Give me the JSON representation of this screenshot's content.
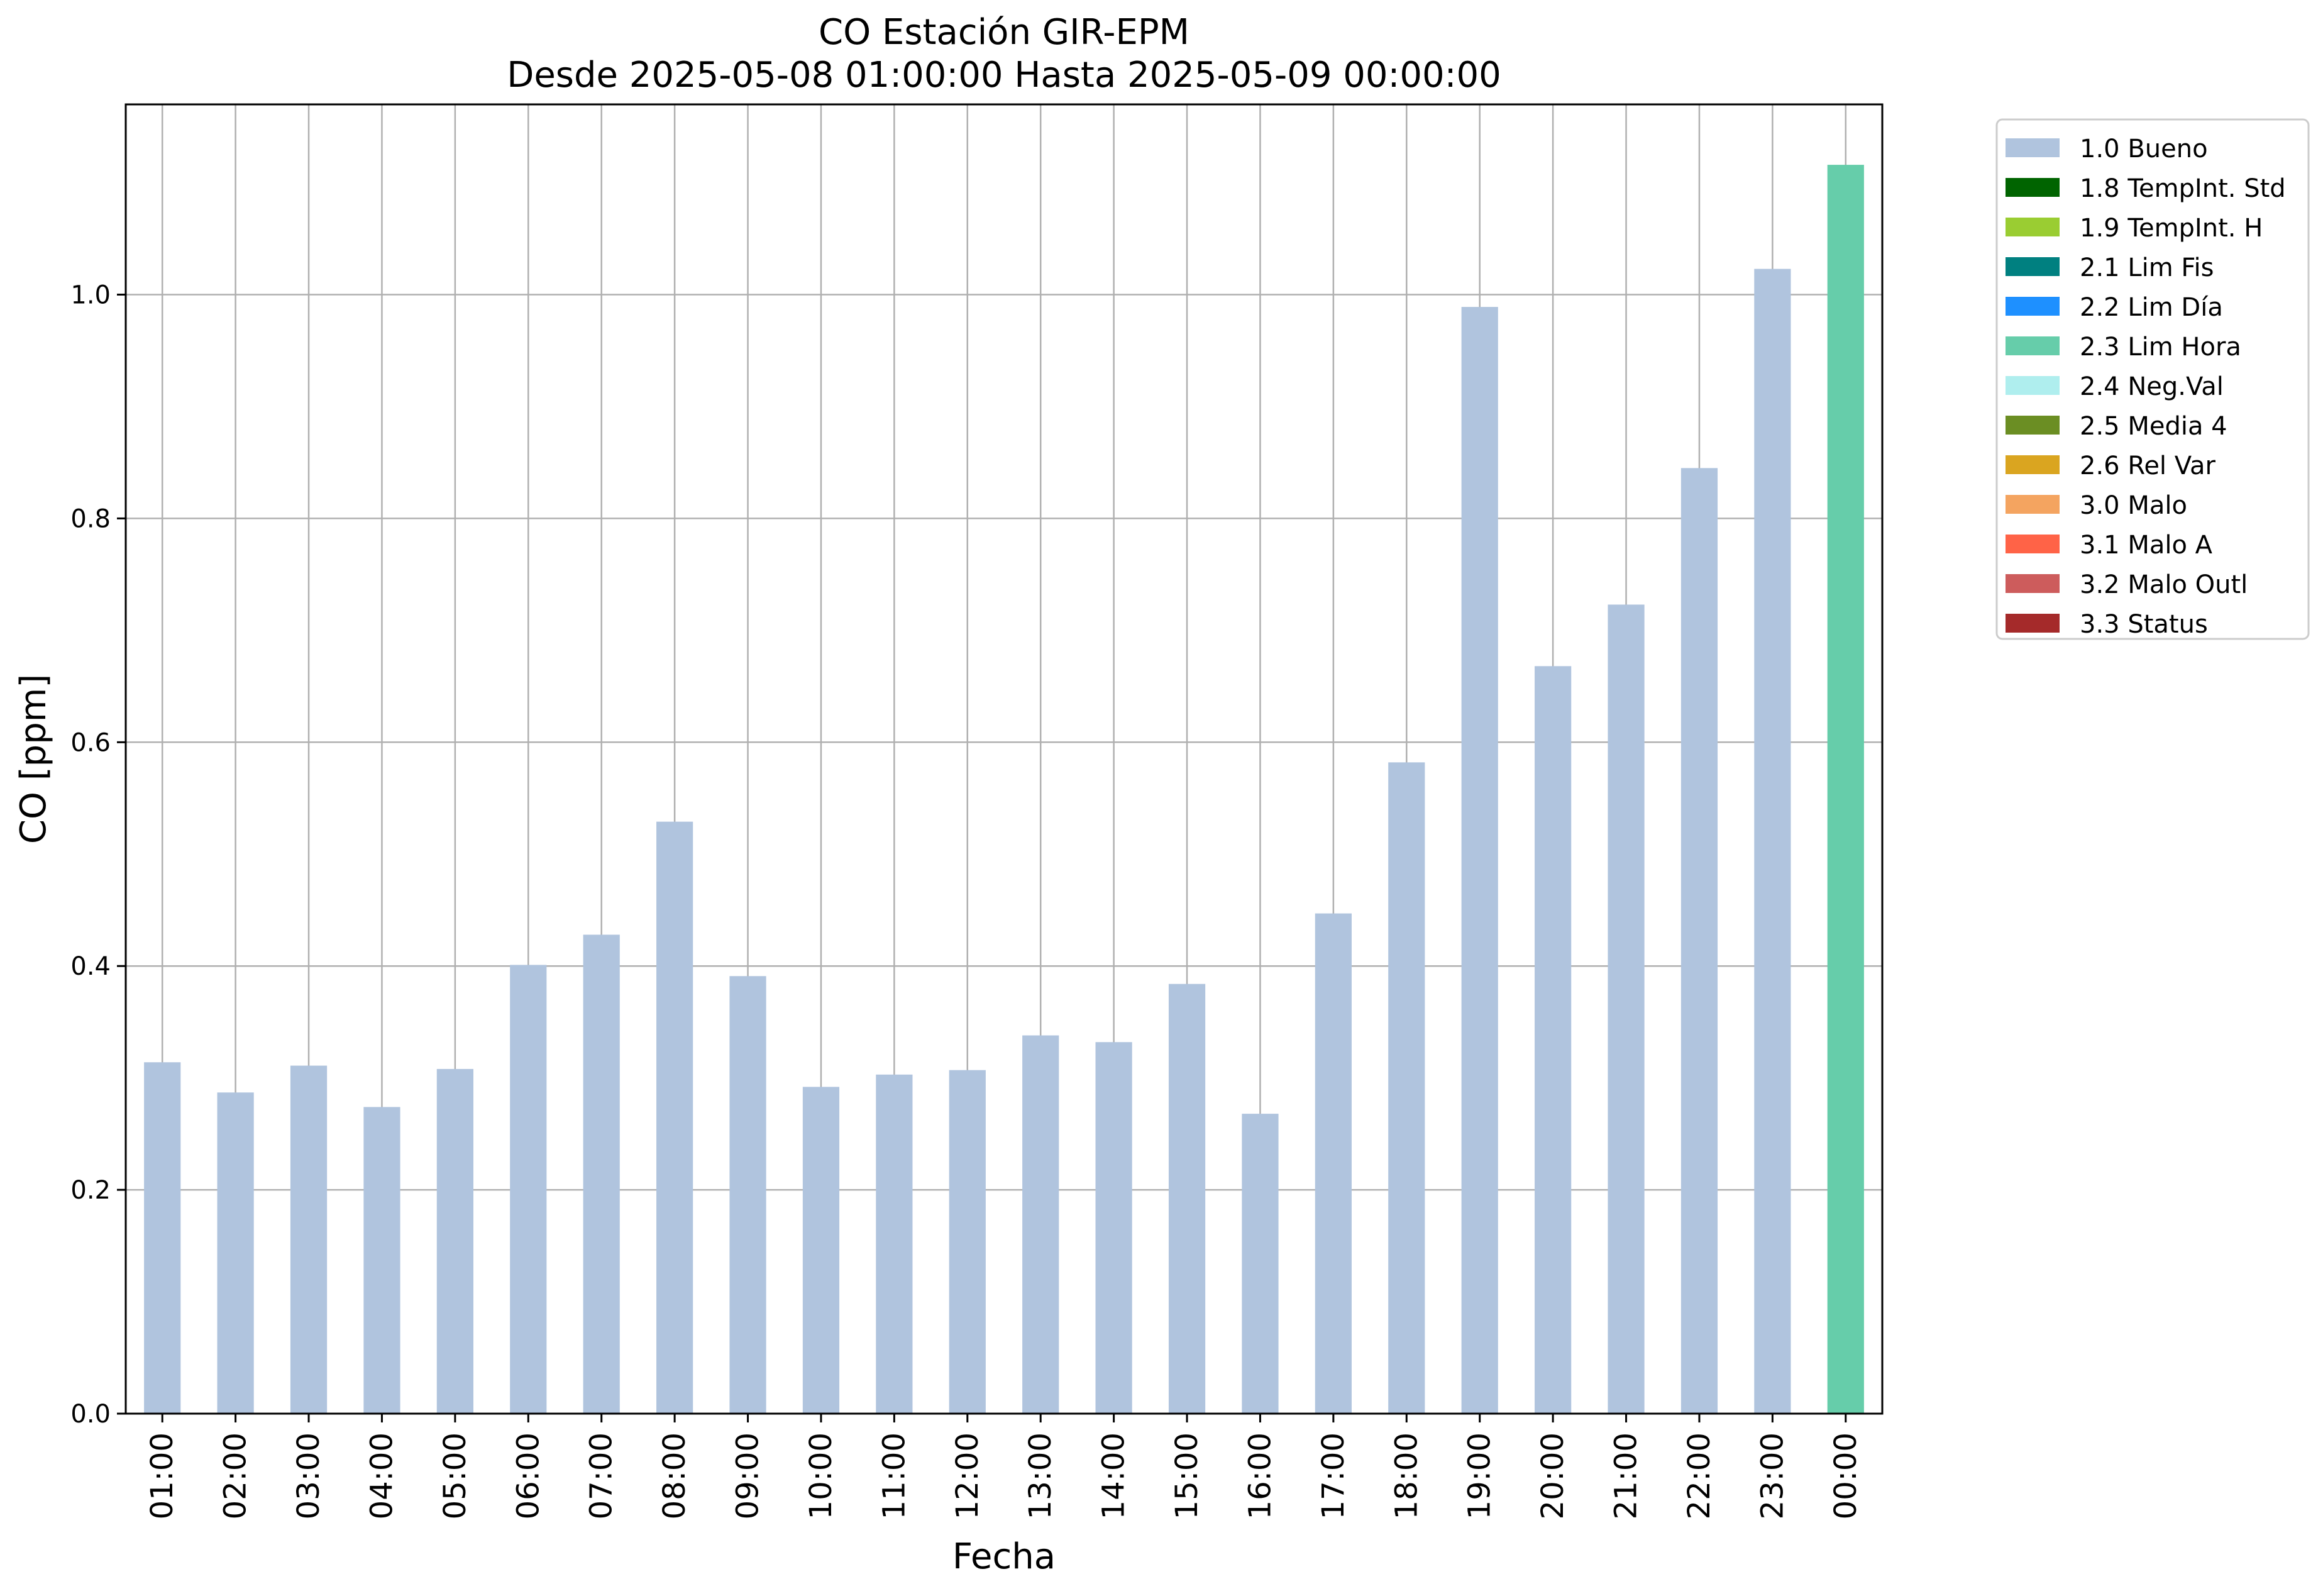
{
  "chart_data": {
    "type": "bar",
    "title": "CO Estación GIR-EPM",
    "subtitle": "Desde 2025-05-08 01:00:00 Hasta 2025-05-09 00:00:00",
    "xlabel": "Fecha",
    "ylabel": "CO [ppm]",
    "ylim": [
      0,
      1.17
    ],
    "yticks": [
      "0.0",
      "0.2",
      "0.4",
      "0.6",
      "0.8",
      "1.0"
    ],
    "grid": true,
    "legend_position": "outside-top-right",
    "categories": [
      "01:00",
      "02:00",
      "03:00",
      "04:00",
      "05:00",
      "06:00",
      "07:00",
      "08:00",
      "09:00",
      "10:00",
      "11:00",
      "12:00",
      "13:00",
      "14:00",
      "15:00",
      "16:00",
      "17:00",
      "18:00",
      "19:00",
      "20:00",
      "21:00",
      "22:00",
      "23:00",
      "00:00"
    ],
    "values": [
      0.314,
      0.287,
      0.311,
      0.274,
      0.308,
      0.401,
      0.428,
      0.529,
      0.391,
      0.292,
      0.303,
      0.307,
      0.338,
      0.332,
      0.384,
      0.268,
      0.447,
      0.582,
      0.989,
      0.668,
      0.723,
      0.845,
      1.023,
      1.116
    ],
    "flags": [
      "1.0 Bueno",
      "1.0 Bueno",
      "1.0 Bueno",
      "1.0 Bueno",
      "1.0 Bueno",
      "1.0 Bueno",
      "1.0 Bueno",
      "1.0 Bueno",
      "1.0 Bueno",
      "1.0 Bueno",
      "1.0 Bueno",
      "1.0 Bueno",
      "1.0 Bueno",
      "1.0 Bueno",
      "1.0 Bueno",
      "1.0 Bueno",
      "1.0 Bueno",
      "1.0 Bueno",
      "1.0 Bueno",
      "1.0 Bueno",
      "1.0 Bueno",
      "1.0 Bueno",
      "1.0 Bueno",
      "2.3 Lim Hora"
    ],
    "legend": [
      {
        "label": "1.0 Bueno",
        "color": "#b0c4de"
      },
      {
        "label": "1.8 TempInt. Std",
        "color": "#006400"
      },
      {
        "label": "1.9 TempInt. H",
        "color": "#9acd32"
      },
      {
        "label": "2.1 Lim Fis",
        "color": "#008080"
      },
      {
        "label": "2.2 Lim Día",
        "color": "#1e90ff"
      },
      {
        "label": "2.3 Lim Hora",
        "color": "#66cdaa"
      },
      {
        "label": "2.4 Neg.Val",
        "color": "#afeeee"
      },
      {
        "label": "2.5 Media 4",
        "color": "#6b8e23"
      },
      {
        "label": "2.6 Rel Var",
        "color": "#daa520"
      },
      {
        "label": "3.0 Malo",
        "color": "#f4a460"
      },
      {
        "label": "3.1 Malo A",
        "color": "#ff6347"
      },
      {
        "label": "3.2 Malo Outl",
        "color": "#cd5c5c"
      },
      {
        "label": "3.3 Status",
        "color": "#a52a2a"
      }
    ]
  }
}
